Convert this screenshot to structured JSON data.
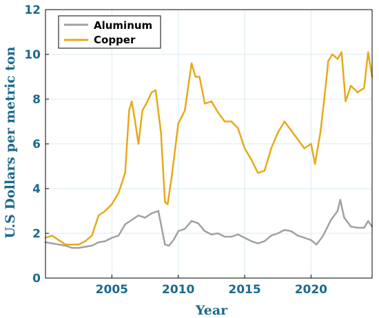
{
  "chart_data": {
    "type": "line",
    "title": "",
    "xlabel": "Year",
    "ylabel": "U.S Dollars per metric ton",
    "xlim": [
      2000,
      2024.6
    ],
    "ylim": [
      0,
      12
    ],
    "x_ticks": [
      2005,
      2010,
      2015,
      2020
    ],
    "x_tick_labels": [
      "2005",
      "2010",
      "2015",
      "2020"
    ],
    "y_ticks": [
      0,
      2,
      4,
      6,
      8,
      10,
      12
    ],
    "y_tick_labels": [
      "0",
      "2",
      "4",
      "6",
      "8",
      "10",
      "12"
    ],
    "grid": true,
    "legend_position": "top-left",
    "series": [
      {
        "name": "Aluminum",
        "color": "#a0a0a0",
        "x": [
          2000.0,
          2000.5,
          2001.0,
          2001.5,
          2002.0,
          2002.5,
          2003.0,
          2003.5,
          2004.0,
          2004.5,
          2005.0,
          2005.5,
          2006.0,
          2006.5,
          2007.0,
          2007.5,
          2008.0,
          2008.5,
          2009.0,
          2009.3,
          2009.7,
          2010.0,
          2010.5,
          2011.0,
          2011.5,
          2012.0,
          2012.5,
          2013.0,
          2013.5,
          2014.0,
          2014.5,
          2015.0,
          2015.5,
          2016.0,
          2016.5,
          2017.0,
          2017.5,
          2018.0,
          2018.5,
          2019.0,
          2019.5,
          2020.0,
          2020.4,
          2020.8,
          2021.0,
          2021.5,
          2022.0,
          2022.2,
          2022.5,
          2023.0,
          2023.5,
          2024.0,
          2024.3,
          2024.6
        ],
        "y": [
          1.6,
          1.55,
          1.5,
          1.45,
          1.35,
          1.35,
          1.4,
          1.45,
          1.6,
          1.65,
          1.8,
          1.9,
          2.4,
          2.6,
          2.8,
          2.7,
          2.9,
          3.0,
          1.5,
          1.45,
          1.75,
          2.1,
          2.2,
          2.55,
          2.45,
          2.1,
          1.95,
          2.0,
          1.85,
          1.85,
          1.95,
          1.8,
          1.65,
          1.55,
          1.65,
          1.9,
          2.0,
          2.15,
          2.1,
          1.9,
          1.8,
          1.7,
          1.5,
          1.8,
          2.0,
          2.6,
          3.0,
          3.5,
          2.7,
          2.3,
          2.25,
          2.25,
          2.55,
          2.3
        ]
      },
      {
        "name": "Copper",
        "color": "#e8a817",
        "x": [
          2000.0,
          2000.5,
          2001.0,
          2001.5,
          2002.0,
          2002.5,
          2003.0,
          2003.5,
          2004.0,
          2004.5,
          2005.0,
          2005.5,
          2006.0,
          2006.3,
          2006.5,
          2006.7,
          2007.0,
          2007.3,
          2007.6,
          2008.0,
          2008.3,
          2008.7,
          2009.0,
          2009.2,
          2009.5,
          2010.0,
          2010.5,
          2011.0,
          2011.3,
          2011.6,
          2012.0,
          2012.5,
          2013.0,
          2013.5,
          2014.0,
          2014.5,
          2015.0,
          2015.5,
          2016.0,
          2016.5,
          2017.0,
          2017.5,
          2018.0,
          2018.5,
          2019.0,
          2019.5,
          2020.0,
          2020.3,
          2020.7,
          2021.0,
          2021.3,
          2021.6,
          2022.0,
          2022.3,
          2022.6,
          2023.0,
          2023.5,
          2024.0,
          2024.3,
          2024.6
        ],
        "y": [
          1.8,
          1.9,
          1.7,
          1.5,
          1.5,
          1.5,
          1.65,
          1.9,
          2.8,
          3.0,
          3.3,
          3.8,
          4.7,
          7.5,
          7.9,
          7.2,
          6.0,
          7.5,
          7.8,
          8.3,
          8.4,
          6.5,
          3.4,
          3.3,
          4.5,
          6.9,
          7.5,
          9.6,
          9.0,
          9.0,
          7.8,
          7.9,
          7.4,
          7.0,
          7.0,
          6.7,
          5.8,
          5.3,
          4.7,
          4.8,
          5.8,
          6.5,
          7.0,
          6.6,
          6.2,
          5.8,
          6.0,
          5.1,
          6.5,
          8.0,
          9.7,
          10.0,
          9.8,
          10.1,
          7.9,
          8.6,
          8.3,
          8.5,
          10.1,
          9.0
        ]
      }
    ]
  }
}
